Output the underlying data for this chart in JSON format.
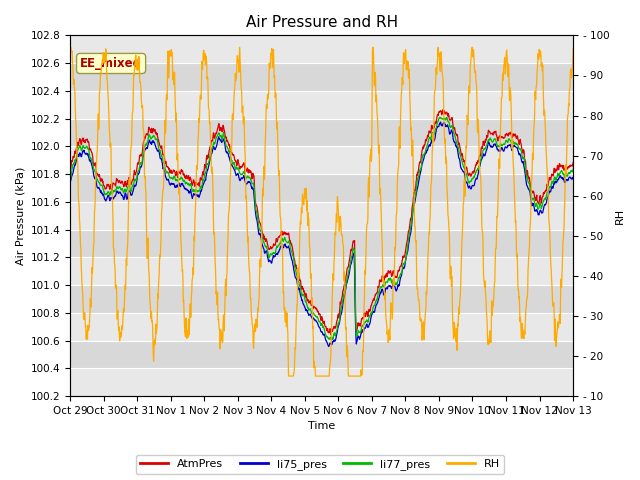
{
  "title": "Air Pressure and RH",
  "ylabel_left": "Air Pressure (kPa)",
  "ylabel_right": "RH",
  "xlabel": "Time",
  "ylim_left": [
    100.2,
    102.8
  ],
  "ylim_right": [
    10,
    100
  ],
  "yticks_left": [
    100.2,
    100.4,
    100.6,
    100.8,
    101.0,
    101.2,
    101.4,
    101.6,
    101.8,
    102.0,
    102.2,
    102.4,
    102.6,
    102.8
  ],
  "yticks_right": [
    10,
    20,
    30,
    40,
    50,
    60,
    70,
    80,
    90,
    100
  ],
  "xtick_labels": [
    "Oct 29",
    "Oct 30",
    "Oct 31",
    "Nov 1",
    "Nov 2",
    "Nov 3",
    "Nov 4",
    "Nov 5",
    "Nov 6",
    "Nov 7",
    "Nov 8",
    "Nov 9",
    "Nov 10",
    "Nov 11",
    "Nov 12",
    "Nov 13"
  ],
  "colors": {
    "AtmPres": "#dd0000",
    "li75_pres": "#0000cc",
    "li77_pres": "#00bb00",
    "RH": "#ffaa00"
  },
  "legend_labels": [
    "AtmPres",
    "li75_pres",
    "li77_pres",
    "RH"
  ],
  "annotation_text": "EE_mixed",
  "annotation_color": "#aa0000",
  "annotation_bg": "#ffffcc",
  "annotation_border": "#999944",
  "fig_bg": "#ffffff",
  "plot_bg_light": "#f0f0f0",
  "plot_bg_dark": "#e0e0e0",
  "band_colors": [
    "#e8e8e8",
    "#d8d8d8"
  ],
  "title_fontsize": 11,
  "label_fontsize": 8,
  "tick_fontsize": 7.5
}
